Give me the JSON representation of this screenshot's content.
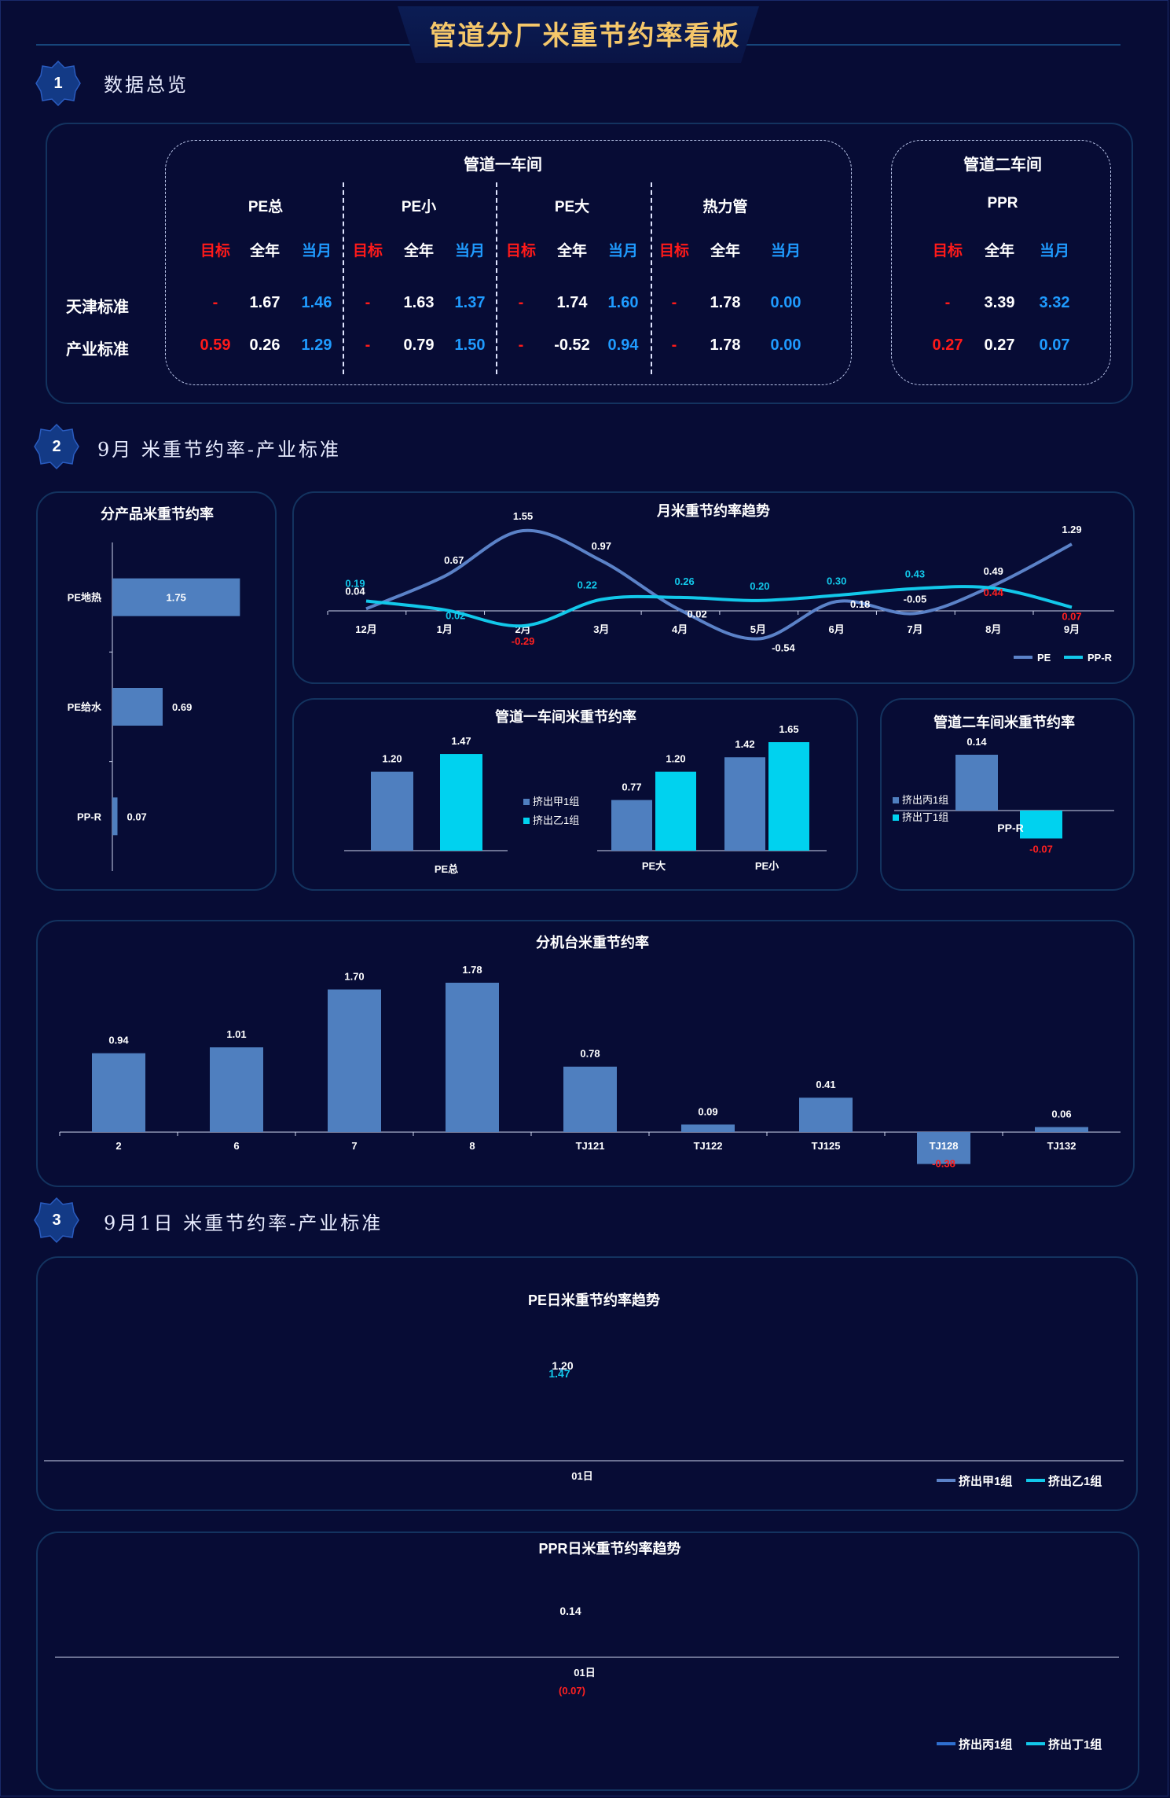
{
  "page_title": "管道分厂米重节约率看板",
  "sections": [
    {
      "num": "1",
      "title": "数据总览"
    },
    {
      "num": "2",
      "title": "9月 米重节约率-产业标准"
    },
    {
      "num": "3",
      "title": "9月1日 米重节约率-产业标准"
    }
  ],
  "overview": {
    "workshop1": "管道一车间",
    "workshop2": "管道二车间",
    "row_labels": [
      "天津标准",
      "产业标准"
    ],
    "col_headers": [
      "目标",
      "全年",
      "当月"
    ],
    "groups": [
      {
        "name": "PE总",
        "rows": [
          [
            "-",
            "1.67",
            "1.46"
          ],
          [
            "0.59",
            "0.26",
            "1.29"
          ]
        ]
      },
      {
        "name": "PE小",
        "rows": [
          [
            "-",
            "1.63",
            "1.37"
          ],
          [
            "-",
            "0.79",
            "1.50"
          ]
        ]
      },
      {
        "name": "PE大",
        "rows": [
          [
            "-",
            "1.74",
            "1.60"
          ],
          [
            "-",
            "-0.52",
            "0.94"
          ]
        ]
      },
      {
        "name": "热力管",
        "rows": [
          [
            "-",
            "1.78",
            "0.00"
          ],
          [
            "-",
            "1.78",
            "0.00"
          ]
        ]
      },
      {
        "name": "PPR",
        "rows": [
          [
            "-",
            "3.39",
            "3.32"
          ],
          [
            "0.27",
            "0.27",
            "0.07"
          ]
        ]
      }
    ],
    "colors": {
      "target": "#ff1a1a",
      "year": "#ffffff",
      "month": "#1f9bff"
    }
  },
  "chart_data": [
    {
      "id": "product",
      "type": "bar",
      "orientation": "horizontal",
      "title": "分产品米重节约率",
      "categories": [
        "PE地热",
        "PE给水",
        "PP-R"
      ],
      "values": [
        1.75,
        0.69,
        0.07
      ],
      "labels": [
        "1.75",
        "0.69",
        "0.07"
      ],
      "xlim": [
        0,
        1.8
      ],
      "color": "#4f7fbf"
    },
    {
      "id": "monthly",
      "type": "line",
      "title": "月米重节约率趋势",
      "categories": [
        "12月",
        "1月",
        "2月",
        "3月",
        "4月",
        "5月",
        "6月",
        "7月",
        "8月",
        "9月"
      ],
      "series": [
        {
          "name": "PE",
          "values": [
            0.04,
            0.67,
            1.55,
            0.97,
            0.02,
            -0.54,
            0.18,
            -0.05,
            0.49,
            1.29
          ],
          "labels": [
            "0.04",
            "0.67",
            "1.55",
            "0.97",
            "0.02",
            "-0.54",
            "0.18",
            "-0.05",
            "0.49",
            "1.29"
          ],
          "color": "#5b82c8"
        },
        {
          "name": "PP-R",
          "values": [
            0.19,
            0.02,
            -0.29,
            0.22,
            0.26,
            0.2,
            0.3,
            0.43,
            0.44,
            0.07
          ],
          "labels": [
            "0.19",
            "0.02",
            "-0.29",
            "0.22",
            "0.26",
            "0.20",
            "0.30",
            "0.43",
            "0.44",
            "0.07"
          ],
          "color": "#12c8ea"
        }
      ],
      "ylim": [
        -0.8,
        1.8
      ],
      "legend": "bottom-right"
    },
    {
      "id": "ws1",
      "type": "bar",
      "title": "管道一车间米重节约率",
      "categories": [
        "PE总",
        "PE大",
        "PE小"
      ],
      "series": [
        {
          "name": "挤出甲1组",
          "values": [
            1.2,
            0.77,
            1.42
          ],
          "labels": [
            "1.20",
            "0.77",
            "1.42"
          ],
          "color": "#4f7fbf"
        },
        {
          "name": "挤出乙1组",
          "values": [
            1.47,
            1.2,
            1.65
          ],
          "labels": [
            "1.47",
            "1.20",
            "1.65"
          ],
          "color": "#00d2ef"
        }
      ],
      "ylim": [
        0,
        1.7
      ],
      "legend": "middle"
    },
    {
      "id": "ws2",
      "type": "bar",
      "title": "管道二车间米重节约率",
      "categories": [
        "PP-R"
      ],
      "series": [
        {
          "name": "挤出丙1组",
          "values": [
            0.14
          ],
          "labels": [
            "0.14"
          ],
          "color": "#4f7fbf"
        },
        {
          "name": "挤出丁1组",
          "values": [
            -0.07
          ],
          "labels": [
            "-0.07"
          ],
          "color": "#00d2ef"
        }
      ],
      "ylim": [
        -0.1,
        0.16
      ],
      "legend": "left"
    },
    {
      "id": "machine",
      "type": "bar",
      "title": "分机台米重节约率",
      "categories": [
        "2",
        "6",
        "7",
        "8",
        "TJ121",
        "TJ122",
        "TJ125",
        "TJ128",
        "TJ132"
      ],
      "values": [
        0.94,
        1.01,
        1.7,
        1.78,
        0.78,
        0.09,
        0.41,
        -0.38,
        0.06
      ],
      "labels": [
        "0.94",
        "1.01",
        "1.70",
        "1.78",
        "0.78",
        "0.09",
        "0.41",
        "-0.38",
        "0.06"
      ],
      "ylim": [
        -0.4,
        1.9
      ],
      "color": "#4f7fbf"
    },
    {
      "id": "pe_daily",
      "type": "line",
      "title": "PE日米重节约率趋势",
      "categories": [
        "01日"
      ],
      "series": [
        {
          "name": "挤出甲1组",
          "values": [
            1.2
          ],
          "labels": [
            "1.20"
          ],
          "color": "#5b82c8"
        },
        {
          "name": "挤出乙1组",
          "values": [
            1.47
          ],
          "labels": [
            "1.47"
          ],
          "color": "#12c8ea"
        }
      ],
      "legend": "bottom-right"
    },
    {
      "id": "ppr_daily",
      "type": "line",
      "title": "PPR日米重节约率趋势",
      "categories": [
        "01日"
      ],
      "series": [
        {
          "name": "挤出丙1组",
          "values": [
            0.14
          ],
          "labels": [
            "0.14"
          ],
          "color": "#2f6fd0"
        },
        {
          "name": "挤出丁1组",
          "values": [
            -0.07
          ],
          "labels": [
            "(0.07)"
          ],
          "color": "#12c8ea"
        }
      ],
      "legend": "bottom-right"
    }
  ]
}
